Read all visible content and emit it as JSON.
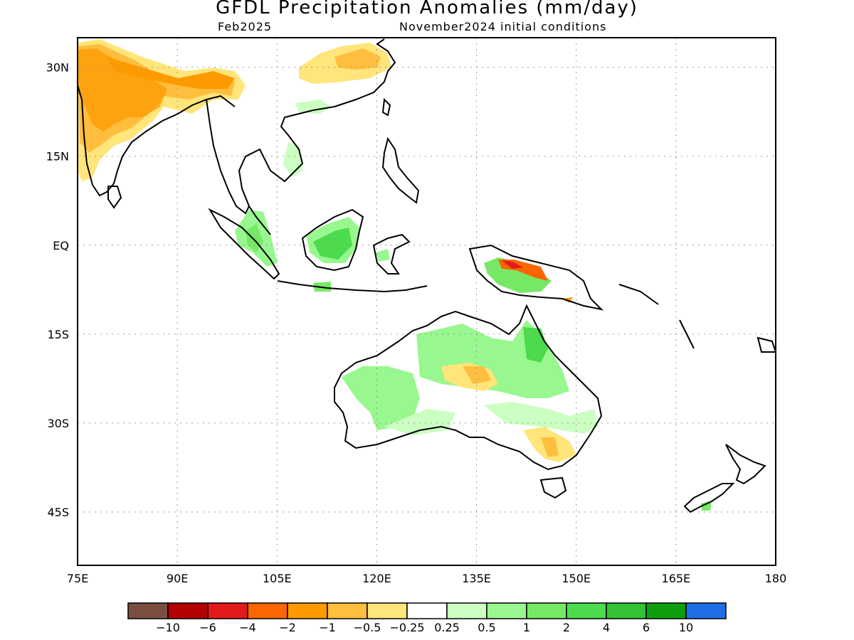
{
  "title": "GFDL Precipitation Anomalies (mm/day)",
  "subtitle_left": "Feb2025",
  "subtitle_right": "November2024 initial conditions",
  "map": {
    "lon_range": [
      75,
      180
    ],
    "lat_range": [
      -54,
      35
    ],
    "lon_ticks": [
      "75E",
      "90E",
      "105E",
      "120E",
      "135E",
      "150E",
      "165E",
      "180"
    ],
    "lat_ticks": [
      "30N",
      "15N",
      "EQ",
      "15S",
      "30S",
      "45S"
    ],
    "grid": "dotted"
  },
  "legend": {
    "colors": [
      "#7a4f42",
      "#b30000",
      "#e31a1c",
      "#fc6600",
      "#fd9a00",
      "#ffbe3d",
      "#ffe57a",
      "#ffffff",
      "#ccffc2",
      "#98f78f",
      "#77e865",
      "#4cdb4c",
      "#34c234",
      "#0e9e0e",
      "#1f6ee8"
    ],
    "labels": [
      "−10",
      "−6",
      "−4",
      "−2",
      "−1",
      "−0.5",
      "−0.25",
      "0.25",
      "0.5",
      "1",
      "2",
      "4",
      "6",
      "10"
    ]
  }
}
